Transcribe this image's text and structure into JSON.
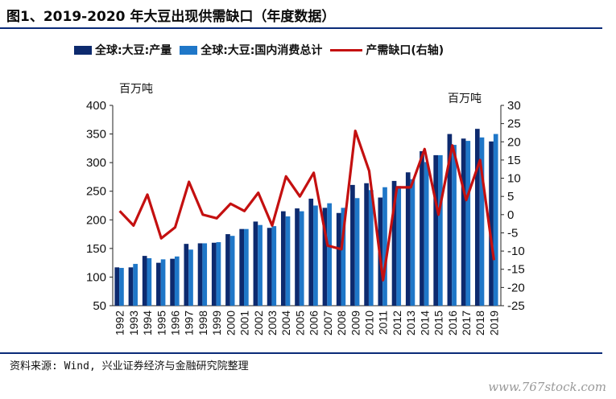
{
  "title": "图1、2019-2020 年大豆出现供需缺口（年度数据）",
  "source": "资料来源: Wind, 兴业证券经济与金融研究院整理",
  "watermark": "www.767stock.com",
  "colors": {
    "production": "#0d2a6e",
    "consumption": "#1f77c8",
    "gap": "#c41010",
    "rule": "#0a2a78"
  },
  "chart_data": {
    "type": "bar",
    "categories": [
      "1992",
      "1993",
      "1994",
      "1995",
      "1996",
      "1997",
      "1998",
      "1999",
      "2000",
      "2001",
      "2002",
      "2003",
      "2004",
      "2005",
      "2006",
      "2007",
      "2008",
      "2009",
      "2010",
      "2011",
      "2012",
      "2013",
      "2014",
      "2015",
      "2016",
      "2017",
      "2018",
      "2019"
    ],
    "series": [
      {
        "name": "全球:大豆:产量",
        "axis": "left",
        "type": "bar",
        "values": [
          117,
          117,
          137,
          125,
          132,
          158,
          159,
          160,
          175,
          184,
          197,
          186,
          215,
          220,
          237,
          221,
          212,
          261,
          264,
          239,
          268,
          283,
          320,
          313,
          350,
          342,
          359,
          337
        ]
      },
      {
        "name": "全球:大豆:国内消费总计",
        "axis": "left",
        "type": "bar",
        "values": [
          116,
          123,
          133,
          131,
          136,
          148,
          159,
          161,
          172,
          184,
          191,
          189,
          206,
          215,
          225,
          229,
          221,
          238,
          252,
          257,
          259,
          271,
          301,
          313,
          331,
          338,
          344,
          350
        ]
      },
      {
        "name": "产需缺口(右轴)",
        "axis": "right",
        "type": "line",
        "values": [
          1,
          -3,
          5.5,
          -6.5,
          -3.5,
          9,
          0,
          -1,
          3,
          1,
          6,
          -3,
          10.5,
          5,
          11.5,
          -8.5,
          -9.5,
          23,
          12,
          -18,
          7.5,
          7.5,
          18,
          0,
          19,
          4,
          15,
          -12.5
        ]
      }
    ],
    "y_left": {
      "unit": "百万吨",
      "min": 50,
      "max": 400,
      "ticks": [
        50,
        100,
        150,
        200,
        250,
        300,
        350,
        400
      ]
    },
    "y_right": {
      "unit": "百万吨",
      "min": -25,
      "max": 30,
      "ticks": [
        30,
        25,
        20,
        15,
        10,
        5,
        0,
        -5,
        -10,
        -15,
        -20,
        -25
      ]
    },
    "legend_placement": "top",
    "grid": false
  }
}
